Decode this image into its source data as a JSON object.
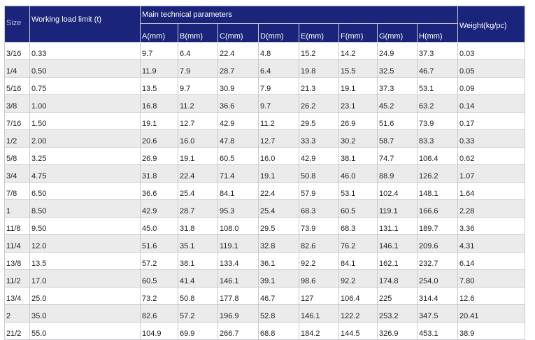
{
  "headers": {
    "size": "Size",
    "wll": "Working load limit (t)",
    "main": "Main technical parameters",
    "weight": "Weight(kg/pc)",
    "dims": [
      "A(mm)",
      "B(mm)",
      "C(mm)",
      "D(mm)",
      "E(mm)",
      "F(mm)",
      "G(mm)",
      "H(mm)"
    ]
  },
  "rows": [
    [
      "3/16",
      "0.33",
      "9.7",
      "6.4",
      "22.4",
      "4.8",
      "15.2",
      "14.2",
      "24.9",
      "37.3",
      "0.03"
    ],
    [
      "1/4",
      "0.50",
      "11.9",
      "7.9",
      "28.7",
      "6.4",
      "19.8",
      "15.5",
      "32.5",
      "46.7",
      "0.05"
    ],
    [
      "5/16",
      "0.75",
      "13.5",
      "9.7",
      "30.9",
      "7.9",
      "21.3",
      "19.1",
      "37.3",
      "53.1",
      "0.09"
    ],
    [
      "3/8",
      "1.00",
      "16.8",
      "11.2",
      "36.6",
      "9.7",
      "26.2",
      "23.1",
      "45.2",
      "63.2",
      "0.14"
    ],
    [
      "7/16",
      "1.50",
      "19.1",
      "12.7",
      "42.9",
      "11.2",
      "29.5",
      "26.9",
      "51.6",
      "73.9",
      "0.17"
    ],
    [
      "1/2",
      "2.00",
      "20.6",
      "16.0",
      "47.8",
      "12.7",
      "33.3",
      "30.2",
      "58.7",
      "83.3",
      "0.33"
    ],
    [
      "5/8",
      "3.25",
      "26.9",
      "19.1",
      "60.5",
      "16.0",
      "42.9",
      "38.1",
      "74.7",
      "106.4",
      "0.62"
    ],
    [
      "3/4",
      "4.75",
      "31.8",
      "22.4",
      "71.4",
      "19.1",
      "50.8",
      "46.0",
      "88.9",
      "126.2",
      "1.07"
    ],
    [
      "7/8",
      "6.50",
      "36.6",
      "25.4",
      "84.1",
      "22.4",
      "57.9",
      "53.1",
      "102.4",
      "148.1",
      "1.64"
    ],
    [
      "1",
      "8.50",
      "42.9",
      "28.7",
      "95.3",
      "25.4",
      "68.3",
      "60.5",
      "119.1",
      "166.6",
      "2.28"
    ],
    [
      "11/8",
      "9.50",
      "45.0",
      "31.8",
      "108.0",
      "29.5",
      "73.9",
      "68.3",
      "131.1",
      "189.7",
      "3.36"
    ],
    [
      "11/4",
      "12.0",
      "51.6",
      "35.1",
      "119.1",
      "32.8",
      "82.6",
      "76.2",
      "146.1",
      "209.6",
      "4.31"
    ],
    [
      "13/8",
      "13.5",
      "57.2",
      "38.1",
      "133.4",
      "36.1",
      "92.2",
      "84.1",
      "162.1",
      "232.7",
      "6.14"
    ],
    [
      "11/2",
      "17.0",
      "60.5",
      "41.4",
      "146.1",
      "39.1",
      "98.6",
      "92.2",
      "174.8",
      "254.0",
      "7.80"
    ],
    [
      "13/4",
      "25.0",
      "73.2",
      "50.8",
      "177.8",
      "46.7",
      "127",
      "106.4",
      "225",
      "314.4",
      "12.6"
    ],
    [
      "2",
      "35.0",
      "82.6",
      "57.2",
      "196.9",
      "52.8",
      "146.1",
      "122.2",
      "253.2",
      "347.5",
      "20.41"
    ],
    [
      "21/2",
      "55.0",
      "104.9",
      "69.9",
      "266.7",
      "68.8",
      "184.2",
      "144.5",
      "326.9",
      "453.1",
      "38.9"
    ]
  ]
}
